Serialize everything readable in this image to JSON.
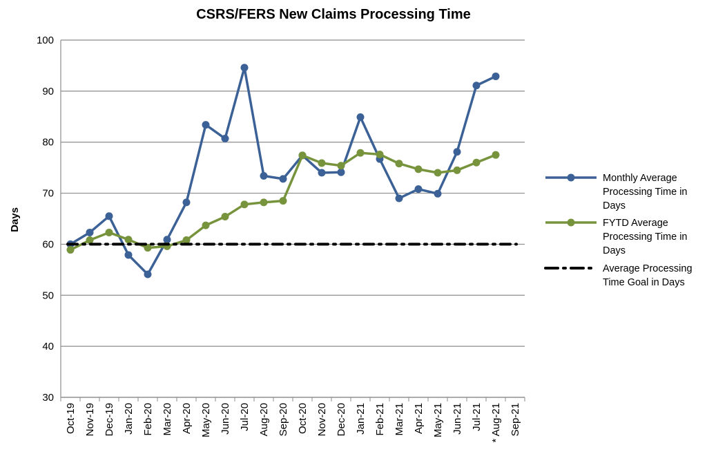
{
  "chart_data": {
    "type": "line",
    "title": "CSRS/FERS New Claims Processing Time",
    "ylabel": "Days",
    "xlabel": "",
    "ylim": [
      30,
      100
    ],
    "yticks": [
      30,
      40,
      50,
      60,
      70,
      80,
      90,
      100
    ],
    "grid": true,
    "legend_position": "right",
    "categories": [
      "Oct-19",
      "Nov-19",
      "Dec-19",
      "Jan-20",
      "Feb-20",
      "Mar-20",
      "Apr-20",
      "May-20",
      "Jun-20",
      "Jul-20",
      "Aug-20",
      "Sep-20",
      "Oct-20",
      "Nov-20",
      "Dec-20",
      "Jan-21",
      "Feb-21",
      "Mar-21",
      "Apr-21",
      "May-21",
      "Jun-21",
      "Jul-21",
      "* Aug-21",
      "Sep-21"
    ],
    "series": [
      {
        "name": "Monthly Average Processing Time in Days",
        "legend_lines": [
          "Monthly Average",
          "Processing Time in",
          "Days"
        ],
        "color": "#3B6196",
        "style": "solid-markers",
        "values": [
          60,
          62.3,
          65.5,
          57.9,
          54.1,
          60.9,
          68.2,
          83.4,
          80.7,
          94.6,
          73.4,
          72.8,
          77.4,
          74,
          74.1,
          84.9,
          76.7,
          69,
          70.8,
          69.9,
          78.1,
          91.1,
          92.9,
          null
        ]
      },
      {
        "name": "FYTD Average Processing Time in Days",
        "legend_lines": [
          "FYTD Average",
          "Processing Time in",
          "Days"
        ],
        "color": "#77933C",
        "style": "solid-markers",
        "values": [
          58.9,
          60.8,
          62.3,
          60.9,
          59.3,
          59.6,
          60.8,
          63.7,
          65.4,
          67.8,
          68.2,
          68.5,
          77.4,
          75.9,
          75.4,
          77.9,
          77.6,
          75.8,
          74.7,
          74,
          74.5,
          76,
          77.5,
          null
        ]
      },
      {
        "name": "Average Processing Time Goal in Days",
        "legend_lines": [
          "Average Processing",
          "Time Goal in Days"
        ],
        "color": "#000000",
        "style": "dash-dot",
        "values": [
          60,
          60,
          60,
          60,
          60,
          60,
          60,
          60,
          60,
          60,
          60,
          60,
          60,
          60,
          60,
          60,
          60,
          60,
          60,
          60,
          60,
          60,
          60,
          60
        ]
      }
    ]
  },
  "colors": {
    "grid": "#8C8C8C",
    "axis": "#8C8C8C"
  }
}
